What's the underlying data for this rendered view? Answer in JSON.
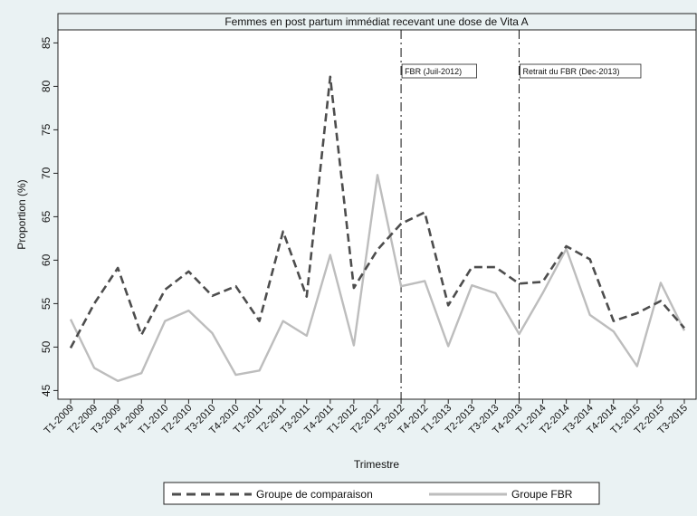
{
  "chart_data": {
    "type": "line",
    "title": "Femmes en post partum immédiat recevant une dose de Vita A",
    "xlabel": "Trimestre",
    "ylabel": "Proportion (%)",
    "ylim": [
      44,
      86.5
    ],
    "yticks": [
      45,
      50,
      55,
      60,
      65,
      70,
      75,
      80,
      85
    ],
    "grid": false,
    "legend_position": "bottom",
    "categories": [
      "T1-2009",
      "T2-2009",
      "T3-2009",
      "T4-2009",
      "T1-2010",
      "T2-2010",
      "T3-2010",
      "T4-2010",
      "T1-2011",
      "T2-2011",
      "T3-2011",
      "T4-2011",
      "T1-2012",
      "T2-2012",
      "T3-2012",
      "T4-2012",
      "T1-2013",
      "T2-2013",
      "T3-2013",
      "T4-2013",
      "T1-2014",
      "T2-2014",
      "T3-2014",
      "T4-2014",
      "T1-2015",
      "T2-2015",
      "T3-2015"
    ],
    "series": [
      {
        "name": "Groupe de comparaison",
        "style": "dashed",
        "color": "#4d4d4d",
        "values": [
          49.9,
          55.0,
          59.1,
          51.4,
          56.6,
          58.7,
          55.9,
          57.0,
          53.0,
          63.3,
          55.8,
          81.1,
          56.8,
          61.2,
          64.2,
          65.5,
          54.8,
          59.2,
          59.2,
          57.3,
          57.5,
          61.6,
          60.1,
          53.0,
          53.9,
          55.3,
          52.2
        ]
      },
      {
        "name": "Groupe FBR",
        "style": "solid",
        "color": "#bdbdbd",
        "values": [
          53.2,
          47.6,
          46.1,
          47.0,
          53.0,
          54.2,
          51.6,
          46.8,
          47.3,
          53.0,
          51.3,
          60.6,
          50.2,
          69.8,
          57.0,
          57.6,
          50.1,
          57.1,
          56.2,
          51.5,
          56.2,
          61.3,
          53.7,
          51.8,
          47.8,
          57.4,
          51.9
        ]
      }
    ],
    "annotations": [
      {
        "at_category": "T3-2012",
        "label": "FBR (Juil-2012)"
      },
      {
        "at_category": "T4-2013",
        "label": "Retrait du FBR (Dec-2013)"
      }
    ]
  }
}
